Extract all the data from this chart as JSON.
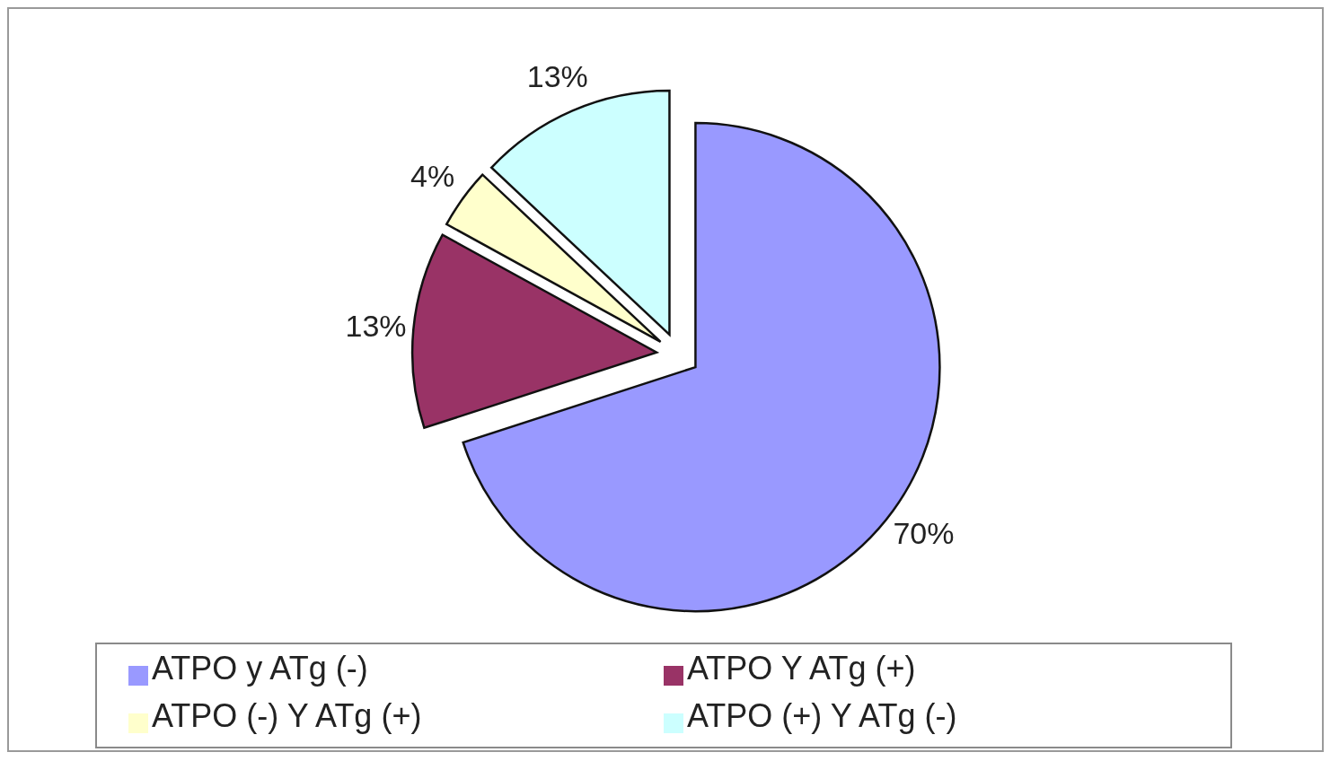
{
  "chart_data": {
    "type": "pie",
    "categories": [
      "ATPO y ATg (-)",
      "ATPO Y ATg (+)",
      "ATPO (-) Y ATg (+)",
      "ATPO (+) Y ATg (-)"
    ],
    "values": [
      70,
      13,
      4,
      13
    ],
    "colors": [
      "#9999ff",
      "#993366",
      "#ffffcc",
      "#ccffff"
    ],
    "value_labels": [
      "70%",
      "13%",
      "4%",
      "13%"
    ],
    "legend": "bottom"
  }
}
